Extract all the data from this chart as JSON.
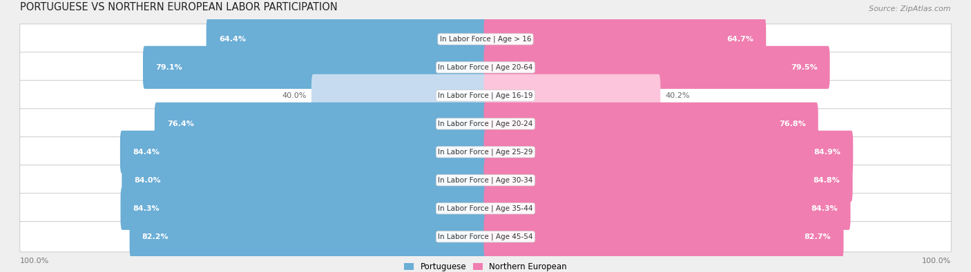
{
  "title": "PORTUGUESE VS NORTHERN EUROPEAN LABOR PARTICIPATION",
  "source": "Source: ZipAtlas.com",
  "categories": [
    "In Labor Force | Age > 16",
    "In Labor Force | Age 20-64",
    "In Labor Force | Age 16-19",
    "In Labor Force | Age 20-24",
    "In Labor Force | Age 25-29",
    "In Labor Force | Age 30-34",
    "In Labor Force | Age 35-44",
    "In Labor Force | Age 45-54"
  ],
  "portuguese": [
    64.4,
    79.1,
    40.0,
    76.4,
    84.4,
    84.0,
    84.3,
    82.2
  ],
  "northern_european": [
    64.7,
    79.5,
    40.2,
    76.8,
    84.9,
    84.8,
    84.3,
    82.7
  ],
  "blue_color": "#6BAED6",
  "blue_light": "#C6DBEF",
  "pink_color": "#F07EB0",
  "pink_light": "#FCC5DC",
  "bg_color": "#EFEFEF",
  "row_bg_light": "#FAFAFA",
  "row_bg_dark": "#F2F2F2",
  "max_val": 100.0,
  "bar_height": 0.72,
  "label_fontsize": 8.0,
  "cat_fontsize": 7.5,
  "title_fontsize": 10.5,
  "source_fontsize": 8.0,
  "axis_label_fontsize": 8.0
}
